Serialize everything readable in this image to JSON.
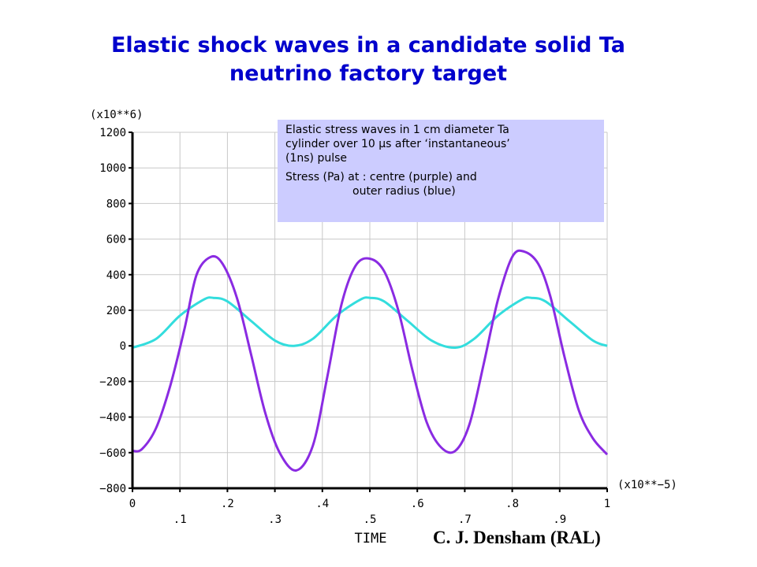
{
  "title": {
    "line1": "Elastic shock waves in a candidate solid Ta",
    "line2": "neutrino factory target"
  },
  "annotation": {
    "line1": "Elastic stress waves in 1 cm diameter Ta",
    "line2": "cylinder over 10 µs after ‘instantaneous’",
    "line3": "(1ns) pulse",
    "line4": "Stress (Pa) at :  centre (purple) and",
    "line5": "outer radius (blue)"
  },
  "credit": "C. J. Densham (RAL)",
  "chart_data": {
    "type": "line",
    "xlabel": "TIME",
    "x_multiplier": "(x10**−5)",
    "y_multiplier": "(x10**6)",
    "xlim": [
      0,
      1
    ],
    "ylim": [
      -800,
      1200
    ],
    "x_tick_labels_upper": [
      "0",
      ".2",
      ".4",
      ".6",
      ".8",
      "1"
    ],
    "x_tick_labels_lower": [
      ".1",
      ".3",
      ".5",
      ".7",
      ".9"
    ],
    "y_tick_labels": [
      "1200",
      "1000",
      "800",
      "600",
      "400",
      "200",
      "0",
      "−200",
      "−400",
      "−600",
      "−800"
    ],
    "grid": true,
    "colors": {
      "axis": "#000000",
      "grid": "#c8c8c8"
    },
    "series": [
      {
        "color": "#8a2be2",
        "x": [
          0,
          0.02,
          0.05,
          0.08,
          0.11,
          0.135,
          0.165,
          0.19,
          0.22,
          0.25,
          0.28,
          0.31,
          0.345,
          0.38,
          0.41,
          0.44,
          0.47,
          0.5,
          0.53,
          0.56,
          0.59,
          0.62,
          0.65,
          0.68,
          0.71,
          0.74,
          0.77,
          0.8,
          0.825,
          0.855,
          0.88,
          0.91,
          0.94,
          0.97,
          1.0
        ],
        "y": [
          -590,
          -580,
          -460,
          -220,
          100,
          400,
          500,
          460,
          270,
          -50,
          -380,
          -600,
          -700,
          -560,
          -180,
          230,
          450,
          490,
          420,
          200,
          -140,
          -430,
          -570,
          -590,
          -440,
          -100,
          260,
          500,
          530,
          460,
          280,
          -60,
          -360,
          -520,
          -610
        ]
      },
      {
        "color": "#33dddd",
        "x": [
          0,
          0.05,
          0.1,
          0.15,
          0.17,
          0.2,
          0.25,
          0.3,
          0.34,
          0.38,
          0.43,
          0.48,
          0.5,
          0.53,
          0.58,
          0.63,
          0.68,
          0.72,
          0.77,
          0.82,
          0.84,
          0.87,
          0.92,
          0.97,
          1.0
        ],
        "y": [
          -10,
          40,
          170,
          260,
          270,
          250,
          140,
          30,
          0,
          40,
          170,
          260,
          270,
          250,
          140,
          30,
          -10,
          40,
          170,
          260,
          270,
          250,
          140,
          30,
          0
        ]
      }
    ]
  }
}
